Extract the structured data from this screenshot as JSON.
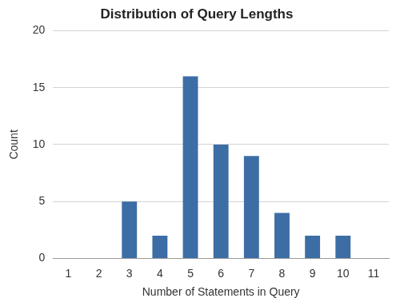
{
  "chart_data": {
    "type": "bar",
    "title": "Distribution of Query Lengths",
    "x_label": "Number of Statements in Query",
    "y_label": "Count",
    "categories": [
      "1",
      "2",
      "3",
      "4",
      "5",
      "6",
      "7",
      "8",
      "9",
      "10",
      "11"
    ],
    "values": [
      0,
      0,
      5,
      2,
      16,
      10,
      9,
      4,
      2,
      2,
      0
    ],
    "color": "#3c6ea5",
    "ylim": [
      0,
      20
    ],
    "yticks": [
      0,
      5,
      10,
      15,
      20
    ],
    "grid": true
  }
}
